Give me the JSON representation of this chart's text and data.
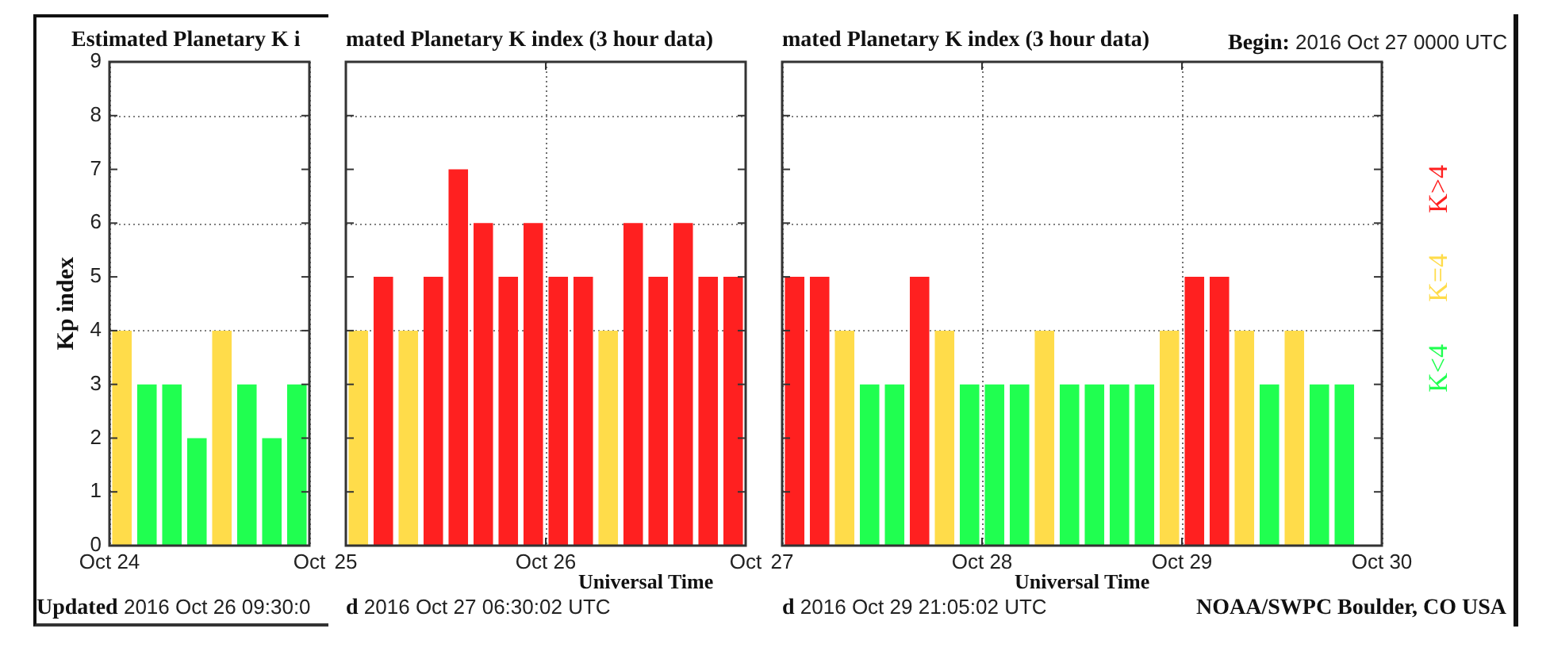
{
  "chart_data": [
    {
      "type": "bar",
      "title": "Estimated Planetary K i",
      "ylabel": "Kp index",
      "annotations": [
        "Updated 2016 Oct 26 09:30:0"
      ],
      "series": [
        {
          "color": "#ffdc4a",
          "x": [
            "2016-10-24T01:30",
            "2016-10-24T13:30"
          ],
          "values": [
            4,
            4
          ]
        },
        {
          "color": "#20ff50",
          "x": [
            "2016-10-24T04:30",
            "2016-10-24T07:30",
            "2016-10-24T10:30",
            "2016-10-24T16:30",
            "2016-10-24T19:30",
            "2016-10-24T22:30"
          ],
          "values": [
            3,
            3,
            2,
            3,
            2,
            3
          ]
        }
      ],
      "xlim": [
        "2016-10-24T00:00",
        "2016-10-25T00:00"
      ],
      "xticks": [
        {
          "value": "2016-10-24T00:00",
          "label": "Oct 24"
        },
        {
          "value": "2016-10-25T00:00",
          "label": "Oct"
        }
      ],
      "ylim": [
        0,
        9
      ],
      "yticks": [
        0,
        1,
        2,
        3,
        4,
        5,
        6,
        7,
        8,
        9
      ],
      "grid": "x",
      "ref_lines": [
        {
          "axis": "y",
          "value": 4,
          "color": "#808080",
          "line_style": "dotted"
        },
        {
          "axis": "y",
          "value": 6,
          "color": "#808080",
          "line_style": "dotted"
        },
        {
          "axis": "y",
          "value": 8,
          "color": "#808080",
          "line_style": "dotted"
        }
      ]
    },
    {
      "type": "bar",
      "title": "mated Planetary K index (3 hour data)",
      "xlabel": "Universal Time",
      "annotations": [
        "d 2016 Oct 27 06:30:02 UTC"
      ],
      "series": [
        {
          "color": "#ff2020",
          "x": [
            "2016-10-25T04:30",
            "2016-10-25T10:30",
            "2016-10-25T13:30",
            "2016-10-25T16:30",
            "2016-10-25T19:30",
            "2016-10-25T22:30",
            "2016-10-26T01:30",
            "2016-10-26T04:30",
            "2016-10-26T10:30",
            "2016-10-26T13:30",
            "2016-10-26T16:30",
            "2016-10-26T19:30",
            "2016-10-26T22:30"
          ],
          "values": [
            5,
            5,
            7,
            6,
            5,
            6,
            5,
            5,
            6,
            5,
            6,
            5,
            5
          ]
        },
        {
          "color": "#ffdc4a",
          "x": [
            "2016-10-25T01:30",
            "2016-10-25T07:30",
            "2016-10-26T07:30"
          ],
          "values": [
            4,
            4,
            4
          ]
        }
      ],
      "xlim": [
        "2016-10-25T00:00",
        "2016-10-27T00:00"
      ],
      "xticks": [
        {
          "value": "2016-10-25T00:00",
          "label": "25"
        },
        {
          "value": "2016-10-26T00:00",
          "label": "Oct 26"
        },
        {
          "value": "2016-10-27T00:00",
          "label": "Oct"
        }
      ],
      "ylim": [
        0,
        9
      ],
      "yticks": [
        0,
        1,
        2,
        3,
        4,
        5,
        6,
        7,
        8,
        9
      ],
      "tick_labels": "x",
      "ref_lines": [
        {
          "axis": "x",
          "value": "2016-10-26T00:00",
          "color": "#707070",
          "line_style": "dotted"
        },
        {
          "axis": "y",
          "value": 4,
          "color": "#808080",
          "line_style": "dotted"
        },
        {
          "axis": "y",
          "value": 6,
          "color": "#808080",
          "line_style": "dotted"
        },
        {
          "axis": "y",
          "value": 8,
          "color": "#808080",
          "line_style": "dotted"
        }
      ]
    },
    {
      "type": "bar",
      "title": "mated Planetary K index (3 hour data)",
      "xlabel": "Universal Time",
      "annotations": [
        "Begin: 2016 Oct 27 0000 UTC",
        "d 2016 Oct 29 21:05:02 UTC",
        "NOAA/SWPC Boulder, CO USA"
      ],
      "series": [
        {
          "name": "K>4",
          "color": "#ff2020",
          "x": [
            "2016-10-27T01:30",
            "2016-10-27T04:30",
            "2016-10-27T16:30",
            "2016-10-29T01:30",
            "2016-10-29T04:30"
          ],
          "values": [
            5,
            5,
            5,
            5,
            5
          ]
        },
        {
          "name": "K=4",
          "color": "#ffdc4a",
          "x": [
            "2016-10-27T07:30",
            "2016-10-27T19:30",
            "2016-10-28T07:30",
            "2016-10-28T22:30",
            "2016-10-29T07:30",
            "2016-10-29T13:30"
          ],
          "values": [
            4,
            4,
            4,
            4,
            4,
            4
          ]
        },
        {
          "name": "K<4",
          "color": "#20ff50",
          "x": [
            "2016-10-27T10:30",
            "2016-10-27T13:30",
            "2016-10-27T22:30",
            "2016-10-28T01:30",
            "2016-10-28T04:30",
            "2016-10-28T10:30",
            "2016-10-28T13:30",
            "2016-10-28T16:30",
            "2016-10-28T19:30",
            "2016-10-29T10:30",
            "2016-10-29T16:30",
            "2016-10-29T19:30"
          ],
          "values": [
            3,
            3,
            3,
            3,
            3,
            3,
            3,
            3,
            3,
            3,
            3,
            3
          ]
        }
      ],
      "xlim": [
        "2016-10-27T00:00",
        "2016-10-30T00:00"
      ],
      "xticks": [
        {
          "value": "2016-10-27T00:00",
          "label": "27"
        },
        {
          "value": "2016-10-28T00:00",
          "label": "Oct 28"
        },
        {
          "value": "2016-10-29T00:00",
          "label": "Oct 29"
        },
        {
          "value": "2016-10-30T00:00",
          "label": "Oct 30"
        }
      ],
      "ylim": [
        0,
        9
      ],
      "yticks": [
        0,
        1,
        2,
        3,
        4,
        5,
        6,
        7,
        8,
        9
      ],
      "tick_labels": "x",
      "grid": "x",
      "legend": "right",
      "ref_lines": [
        {
          "axis": "y",
          "value": 4,
          "color": "#808080",
          "line_style": "dotted"
        },
        {
          "axis": "y",
          "value": 6,
          "color": "#808080",
          "line_style": "dotted"
        },
        {
          "axis": "y",
          "value": 8,
          "color": "#808080",
          "line_style": "dotted"
        }
      ]
    }
  ]
}
